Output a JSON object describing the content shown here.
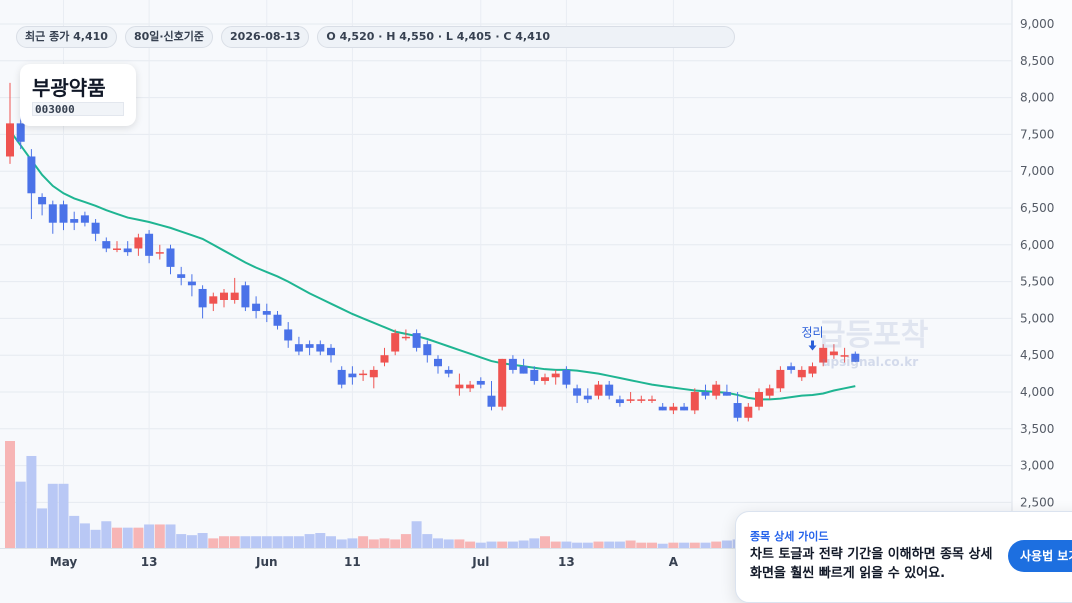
{
  "info_bar": {
    "last_close": "최근 종가 4,410",
    "signal_basis": "80일·신호기준",
    "date": "2026-08-13",
    "ohlc": "O 4,520 · H 4,550 · L 4,405 · C 4,410"
  },
  "stock": {
    "name": "부광약품",
    "code": "003000"
  },
  "marker": {
    "label": "정리"
  },
  "watermark": {
    "brand": "급등포착",
    "url": "upsignal.co.kr"
  },
  "guide": {
    "title": "종목 상세 가이드",
    "body": "차트 토글과 전략 기간을 이해하면 종목 상세 화면을 훨씬 빠르게 읽을 수 있어요.",
    "button": "사용법 보기"
  },
  "colors": {
    "up": "#ef5350",
    "down": "#4a72e8",
    "ma": "#1fb592",
    "volume_up": "#f7b5b5",
    "volume_down": "#b9c8f5",
    "accent": "#1d6fe0"
  },
  "chart_data": {
    "type": "candlestick",
    "y_range": [
      2300,
      9000
    ],
    "y_ticks": [
      "9,000",
      "8,500",
      "8,000",
      "7,500",
      "7,000",
      "6,500",
      "6,000",
      "5,500",
      "5,000",
      "4,500",
      "4,000",
      "3,500",
      "3,000",
      "2,500"
    ],
    "y_tick_values": [
      9000,
      8500,
      8000,
      7500,
      7000,
      6500,
      6000,
      5500,
      5000,
      4500,
      4000,
      3500,
      3000,
      2500
    ],
    "x_ticks": [
      {
        "label": "May",
        "index": 5
      },
      {
        "label": "13",
        "index": 13
      },
      {
        "label": "Jun",
        "index": 24
      },
      {
        "label": "11",
        "index": 32
      },
      {
        "label": "Jul",
        "index": 44
      },
      {
        "label": "13",
        "index": 52
      },
      {
        "label": "A",
        "index": 62
      }
    ],
    "candles": [
      [
        7200,
        8200,
        7100,
        7650
      ],
      [
        7650,
        7750,
        7300,
        7400
      ],
      [
        7200,
        7300,
        6350,
        6700
      ],
      [
        6650,
        6700,
        6400,
        6550
      ],
      [
        6550,
        6600,
        6150,
        6300
      ],
      [
        6550,
        6600,
        6200,
        6300
      ],
      [
        6350,
        6450,
        6200,
        6300
      ],
      [
        6400,
        6450,
        6250,
        6300
      ],
      [
        6300,
        6350,
        6050,
        6150
      ],
      [
        6050,
        6100,
        5900,
        5950
      ],
      [
        5950,
        6050,
        5900,
        5950
      ],
      [
        5950,
        6050,
        5850,
        5900
      ],
      [
        5950,
        6150,
        5850,
        6100
      ],
      [
        6150,
        6200,
        5750,
        5850
      ],
      [
        5900,
        6000,
        5800,
        5900
      ],
      [
        5950,
        6000,
        5600,
        5700
      ],
      [
        5600,
        5700,
        5450,
        5550
      ],
      [
        5500,
        5600,
        5300,
        5450
      ],
      [
        5400,
        5450,
        5000,
        5150
      ],
      [
        5200,
        5350,
        5100,
        5300
      ],
      [
        5250,
        5400,
        5150,
        5350
      ],
      [
        5250,
        5550,
        5200,
        5350
      ],
      [
        5450,
        5500,
        5100,
        5150
      ],
      [
        5200,
        5300,
        5000,
        5100
      ],
      [
        5100,
        5200,
        4950,
        5050
      ],
      [
        5050,
        5100,
        4850,
        4900
      ],
      [
        4850,
        4950,
        4600,
        4700
      ],
      [
        4650,
        4750,
        4500,
        4550
      ],
      [
        4650,
        4700,
        4500,
        4600
      ],
      [
        4650,
        4700,
        4500,
        4550
      ],
      [
        4600,
        4650,
        4400,
        4500
      ],
      [
        4300,
        4350,
        4050,
        4100
      ],
      [
        4250,
        4350,
        4100,
        4200
      ],
      [
        4250,
        4300,
        4150,
        4250
      ],
      [
        4200,
        4350,
        4050,
        4300
      ],
      [
        4400,
        4600,
        4350,
        4500
      ],
      [
        4550,
        4850,
        4500,
        4800
      ],
      [
        4750,
        4850,
        4700,
        4750
      ],
      [
        4800,
        4850,
        4550,
        4600
      ],
      [
        4650,
        4700,
        4400,
        4500
      ],
      [
        4450,
        4500,
        4250,
        4350
      ],
      [
        4300,
        4350,
        4200,
        4250
      ],
      [
        4050,
        4250,
        3950,
        4100
      ],
      [
        4050,
        4150,
        4000,
        4100
      ],
      [
        4150,
        4200,
        4050,
        4100
      ],
      [
        3950,
        4150,
        3750,
        3800
      ],
      [
        3800,
        4450,
        3750,
        4450
      ],
      [
        4450,
        4500,
        4250,
        4300
      ],
      [
        4350,
        4450,
        4250,
        4250
      ],
      [
        4300,
        4350,
        4100,
        4150
      ],
      [
        4150,
        4250,
        4100,
        4200
      ],
      [
        4200,
        4300,
        4100,
        4250
      ],
      [
        4300,
        4350,
        4050,
        4100
      ],
      [
        4050,
        4100,
        3850,
        3950
      ],
      [
        3950,
        4050,
        3850,
        3900
      ],
      [
        3950,
        4150,
        3900,
        4100
      ],
      [
        4100,
        4150,
        3900,
        3950
      ],
      [
        3900,
        3950,
        3800,
        3850
      ],
      [
        3900,
        4000,
        3850,
        3900
      ],
      [
        3900,
        3950,
        3850,
        3900
      ],
      [
        3900,
        3950,
        3850,
        3900
      ],
      [
        3800,
        3850,
        3750,
        3750
      ],
      [
        3750,
        3850,
        3700,
        3800
      ],
      [
        3800,
        3850,
        3750,
        3750
      ],
      [
        3750,
        4050,
        3700,
        4000
      ],
      [
        4000,
        4100,
        3900,
        3950
      ],
      [
        3950,
        4150,
        3900,
        4100
      ],
      [
        4000,
        4100,
        3950,
        3950
      ],
      [
        3850,
        4000,
        3600,
        3650
      ],
      [
        3650,
        3850,
        3600,
        3800
      ],
      [
        3800,
        4050,
        3750,
        4000
      ],
      [
        3950,
        4100,
        3900,
        4050
      ],
      [
        4050,
        4350,
        4000,
        4300
      ],
      [
        4350,
        4400,
        4250,
        4300
      ],
      [
        4200,
        4350,
        4150,
        4300
      ],
      [
        4250,
        4400,
        4200,
        4350
      ],
      [
        4400,
        4650,
        4350,
        4600
      ],
      [
        4500,
        4650,
        4450,
        4550
      ],
      [
        4500,
        4600,
        4400,
        4500
      ],
      [
        4520,
        4550,
        4405,
        4410
      ]
    ],
    "ma": [
      7550,
      7350,
      7150,
      6950,
      6800,
      6700,
      6630,
      6580,
      6530,
      6470,
      6420,
      6370,
      6340,
      6310,
      6270,
      6230,
      6180,
      6130,
      6080,
      6000,
      5920,
      5840,
      5760,
      5690,
      5630,
      5570,
      5500,
      5420,
      5340,
      5270,
      5200,
      5130,
      5060,
      5000,
      4940,
      4880,
      4820,
      4790,
      4760,
      4720,
      4670,
      4620,
      4570,
      4520,
      4470,
      4420,
      4390,
      4370,
      4350,
      4330,
      4310,
      4300,
      4300,
      4290,
      4270,
      4250,
      4220,
      4190,
      4160,
      4130,
      4100,
      4080,
      4060,
      4040,
      4020,
      4010,
      4000,
      3990,
      3960,
      3920,
      3900,
      3900,
      3910,
      3930,
      3950,
      3960,
      3980,
      4020,
      4050,
      4080
    ],
    "volumes": [
      100,
      62,
      86,
      37,
      60,
      60,
      30,
      23,
      17,
      25,
      19,
      19,
      19,
      22,
      22,
      22,
      13,
      12,
      14,
      9,
      11,
      11,
      11,
      11,
      11,
      11,
      11,
      11,
      13,
      14,
      11,
      8,
      9,
      11,
      8,
      9,
      8,
      13,
      25,
      13,
      9,
      8,
      8,
      6,
      5,
      6,
      6,
      6,
      7,
      9,
      11,
      6,
      6,
      5,
      5,
      6,
      6,
      6,
      7,
      5,
      5,
      4,
      5,
      5,
      5,
      5,
      6,
      7,
      8,
      7,
      6,
      6,
      6,
      7,
      7,
      7,
      7,
      7,
      6,
      5
    ]
  }
}
